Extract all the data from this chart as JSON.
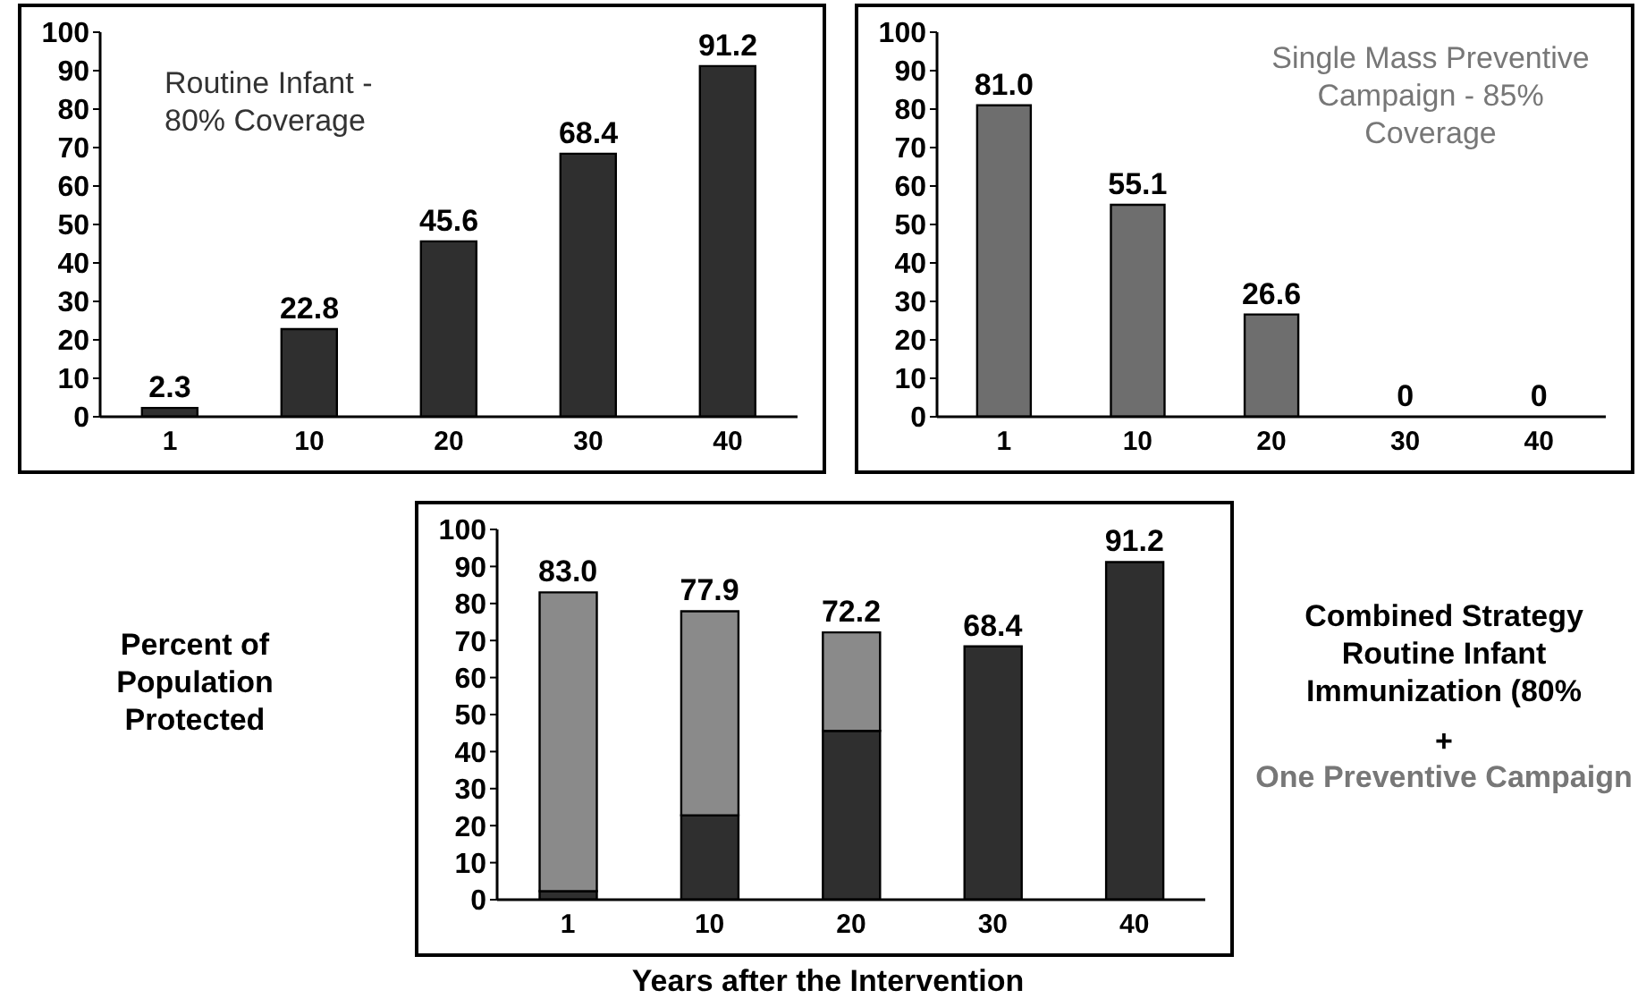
{
  "chart_data": [
    {
      "type": "bar",
      "categories": [
        "1",
        "10",
        "20",
        "30",
        "40"
      ],
      "series": [
        {
          "color": "#2f2f2f",
          "values": [
            2.3,
            22.8,
            45.6,
            68.4,
            91.2
          ]
        }
      ],
      "ylim": [
        0,
        100
      ],
      "yticks": [
        0,
        10,
        20,
        30,
        40,
        50,
        60,
        70,
        80,
        90,
        100
      ],
      "data_labels": true,
      "annotations": [
        "Routine Infant - 80% Coverage"
      ]
    },
    {
      "type": "bar",
      "categories": [
        "1",
        "10",
        "20",
        "30",
        "40"
      ],
      "series": [
        {
          "color": "#6e6e6e",
          "values": [
            81.0,
            55.1,
            26.6,
            0,
            0
          ],
          "value_labels": [
            "81.0",
            "55.1",
            "26.6",
            "0",
            "0"
          ]
        }
      ],
      "ylim": [
        0,
        100
      ],
      "yticks": [
        0,
        10,
        20,
        30,
        40,
        50,
        60,
        70,
        80,
        90,
        100
      ],
      "annotations": [
        "Single Mass Preventive Campaign - 85% Coverage"
      ]
    },
    {
      "type": "bar",
      "stacked": true,
      "categories": [
        "1",
        "10",
        "20",
        "30",
        "40"
      ],
      "series": [
        {
          "color": "#2f2f2f",
          "values": [
            2.3,
            22.8,
            45.6,
            68.4,
            91.2
          ]
        },
        {
          "color": "#8a8a8a",
          "values": [
            80.7,
            55.1,
            26.6,
            0,
            0
          ]
        }
      ],
      "totals": [
        "83.0",
        "77.9",
        "72.2",
        "68.4",
        "91.2"
      ],
      "ylim": [
        0,
        100
      ],
      "yticks": [
        0,
        10,
        20,
        30,
        40,
        50,
        60,
        70,
        80,
        90,
        100
      ],
      "xlabel": "Years after the Intervention",
      "ylabel": "Percent of Population Protected",
      "annotations": [
        "Combined Strategy Routine Infant Immunization (80%",
        "+",
        "One Preventive Campaign"
      ]
    }
  ]
}
